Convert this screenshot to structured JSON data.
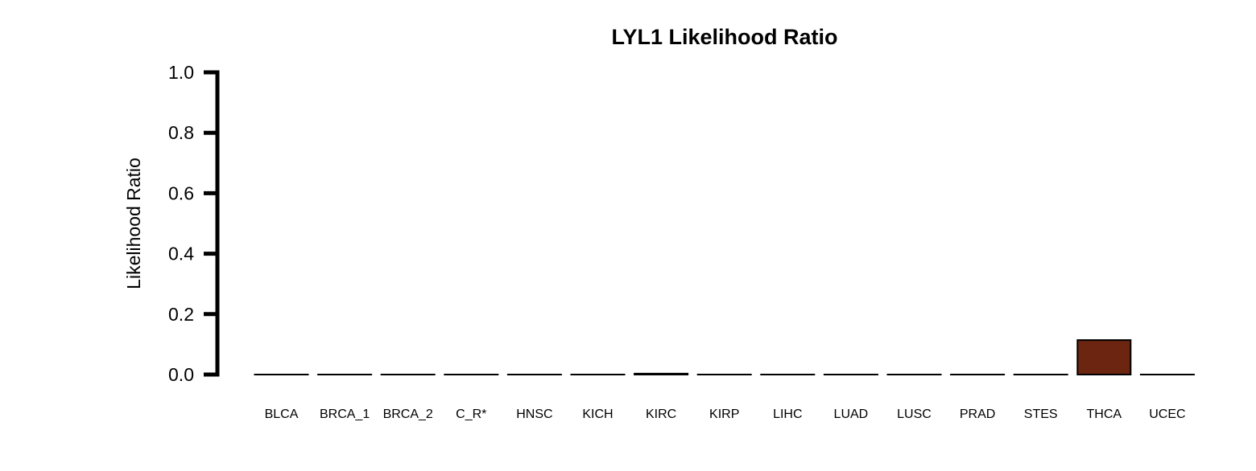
{
  "chart_data": {
    "type": "bar",
    "title": "LYL1 Likelihood Ratio",
    "xlabel": "",
    "ylabel": "Likelihood Ratio",
    "ylim": [
      0,
      1.0
    ],
    "yticks": [
      "0.0",
      "0.2",
      "0.4",
      "0.6",
      "0.8",
      "1.0"
    ],
    "categories": [
      "BLCA",
      "BRCA_1",
      "BRCA_2",
      "C_R*",
      "HNSC",
      "KICH",
      "KIRC",
      "KIRP",
      "LIHC",
      "LUAD",
      "LUSC",
      "PRAD",
      "STES",
      "THCA",
      "UCEC"
    ],
    "values": [
      0.0,
      0.0,
      0.0,
      0.0,
      0.0,
      0.0,
      0.003,
      0.0,
      0.0,
      0.0,
      0.0,
      0.0,
      0.0,
      0.114,
      0.0
    ],
    "bar_color": "#6b2510",
    "bar_edge_color": "#000000",
    "grid": false,
    "legend": "none"
  }
}
